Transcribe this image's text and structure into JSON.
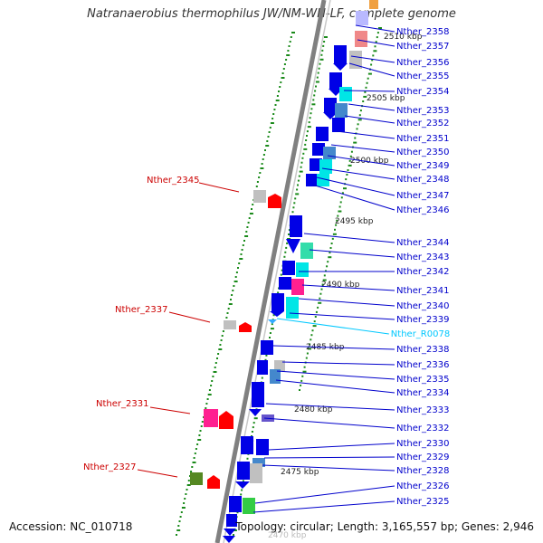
{
  "title": "Natranaerobius thermophilus JW/NM-WN-LF, complete genome",
  "footer": {
    "accession": "Accession: NC_010718",
    "topology": "Topology: circular; Length: 3,165,557 bp; Genes: 2,946"
  },
  "position_labels": [
    "2510 kbp",
    "2505 kbp",
    "2500 kbp",
    "2495 kbp",
    "2490 kbp",
    "2485 kbp",
    "2480 kbp",
    "2475 kbp",
    "2470 kbp"
  ],
  "right_genes": [
    "Nther_2358",
    "Nther_2357",
    "Nther_2356",
    "Nther_2355",
    "Nther_2354",
    "Nther_2353",
    "Nther_2352",
    "Nther_2351",
    "Nther_2350",
    "Nther_2349",
    "Nther_2348",
    "Nther_2347",
    "Nther_2346",
    "Nther_2344",
    "Nther_2343",
    "Nther_2342",
    "Nther_2341",
    "Nther_2340",
    "Nther_2339",
    "Nther_R0078",
    "Nther_2338",
    "Nther_2336",
    "Nther_2335",
    "Nther_2334",
    "Nther_2333",
    "Nther_2332",
    "Nther_2330",
    "Nther_2329",
    "Nther_2328",
    "Nther_2326",
    "Nther_2325"
  ],
  "left_genes": [
    "Nther_2345",
    "Nther_2337",
    "Nther_2331",
    "Nther_2327"
  ],
  "colors": {
    "gene_label": "#0000cc",
    "rna_label": "#00c8ff",
    "left_label": "#cc0000",
    "forward_gene": "#0000e6",
    "reverse_gene": "#ff0000",
    "backbone": "#808080",
    "tick": "#1a8a1a"
  }
}
